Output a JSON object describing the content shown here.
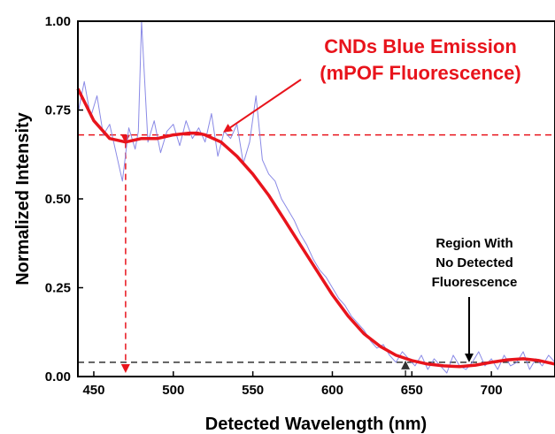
{
  "chart_data": {
    "type": "line",
    "xlabel": "Detected Wavelength (nm)",
    "ylabel": "Normalized Intensity",
    "xlim": [
      440,
      740
    ],
    "ylim": [
      0,
      1.0
    ],
    "x_ticks": [
      450,
      500,
      550,
      600,
      650,
      700
    ],
    "y_ticks": [
      "0.00",
      "0.25",
      "0.50",
      "0.75",
      "1.00"
    ],
    "grid": false,
    "colors": {
      "raw": "#8a8ae6",
      "fit": "#e8141c",
      "ref_red": "#e8141c",
      "ref_black": "#333333"
    },
    "series": [
      {
        "role": "raw-spectrum",
        "x": [
          440,
          444,
          448,
          452,
          456,
          460,
          464,
          468,
          472,
          476,
          478,
          480,
          484,
          488,
          492,
          496,
          500,
          504,
          508,
          512,
          516,
          520,
          524,
          528,
          532,
          536,
          540,
          544,
          548,
          552,
          556,
          560,
          564,
          568,
          572,
          576,
          580,
          584,
          588,
          592,
          596,
          600,
          604,
          608,
          612,
          616,
          620,
          624,
          628,
          632,
          636,
          640,
          644,
          648,
          652,
          656,
          660,
          664,
          668,
          672,
          676,
          680,
          684,
          688,
          692,
          696,
          700,
          704,
          708,
          712,
          716,
          720,
          724,
          728,
          732,
          736,
          740
        ],
        "values": [
          0.74,
          0.83,
          0.73,
          0.79,
          0.68,
          0.71,
          0.63,
          0.55,
          0.7,
          0.64,
          0.69,
          1.0,
          0.66,
          0.72,
          0.63,
          0.69,
          0.71,
          0.65,
          0.72,
          0.67,
          0.7,
          0.66,
          0.74,
          0.62,
          0.69,
          0.67,
          0.71,
          0.6,
          0.66,
          0.79,
          0.61,
          0.57,
          0.55,
          0.5,
          0.47,
          0.44,
          0.4,
          0.37,
          0.33,
          0.3,
          0.28,
          0.25,
          0.22,
          0.2,
          0.17,
          0.15,
          0.13,
          0.1,
          0.08,
          0.09,
          0.06,
          0.04,
          0.07,
          0.05,
          0.03,
          0.06,
          0.02,
          0.05,
          0.03,
          0.01,
          0.06,
          0.03,
          0.02,
          0.04,
          0.07,
          0.03,
          0.05,
          0.02,
          0.06,
          0.03,
          0.04,
          0.07,
          0.02,
          0.05,
          0.03,
          0.06,
          0.04
        ]
      },
      {
        "role": "polynomial-fit",
        "x": [
          440,
          450,
          460,
          470,
          480,
          490,
          500,
          510,
          515,
          520,
          530,
          540,
          550,
          560,
          570,
          580,
          590,
          600,
          610,
          620,
          630,
          640,
          650,
          660,
          670,
          680,
          690,
          700,
          710,
          720,
          730,
          740
        ],
        "values": [
          0.81,
          0.72,
          0.67,
          0.66,
          0.67,
          0.67,
          0.68,
          0.685,
          0.685,
          0.68,
          0.66,
          0.62,
          0.57,
          0.51,
          0.44,
          0.37,
          0.3,
          0.23,
          0.17,
          0.12,
          0.085,
          0.06,
          0.045,
          0.035,
          0.03,
          0.028,
          0.032,
          0.04,
          0.047,
          0.05,
          0.045,
          0.035
        ]
      }
    ],
    "reference_lines": [
      {
        "orientation": "horizontal",
        "y": 0.68,
        "color": "#e8141c"
      },
      {
        "orientation": "vertical",
        "x": 470,
        "y_from": 0.66,
        "y_to": 0.0,
        "color": "#e8141c"
      },
      {
        "orientation": "horizontal",
        "y": 0.04,
        "color": "#333333"
      },
      {
        "orientation": "vertical",
        "x": 646,
        "y_from": 0.0,
        "y_to": 0.04,
        "color": "#333333"
      }
    ],
    "annotations": [
      {
        "lines": [
          "CNDs Blue Emission",
          "(mPOF Fluorescence)"
        ],
        "arrow_to": [
          530,
          0.68
        ],
        "color": "#e8141c"
      },
      {
        "lines": [
          "Region With",
          "No Detected",
          "Fluorescence"
        ],
        "arrow_to": [
          686,
          0.04
        ],
        "color": "#000000"
      }
    ]
  }
}
